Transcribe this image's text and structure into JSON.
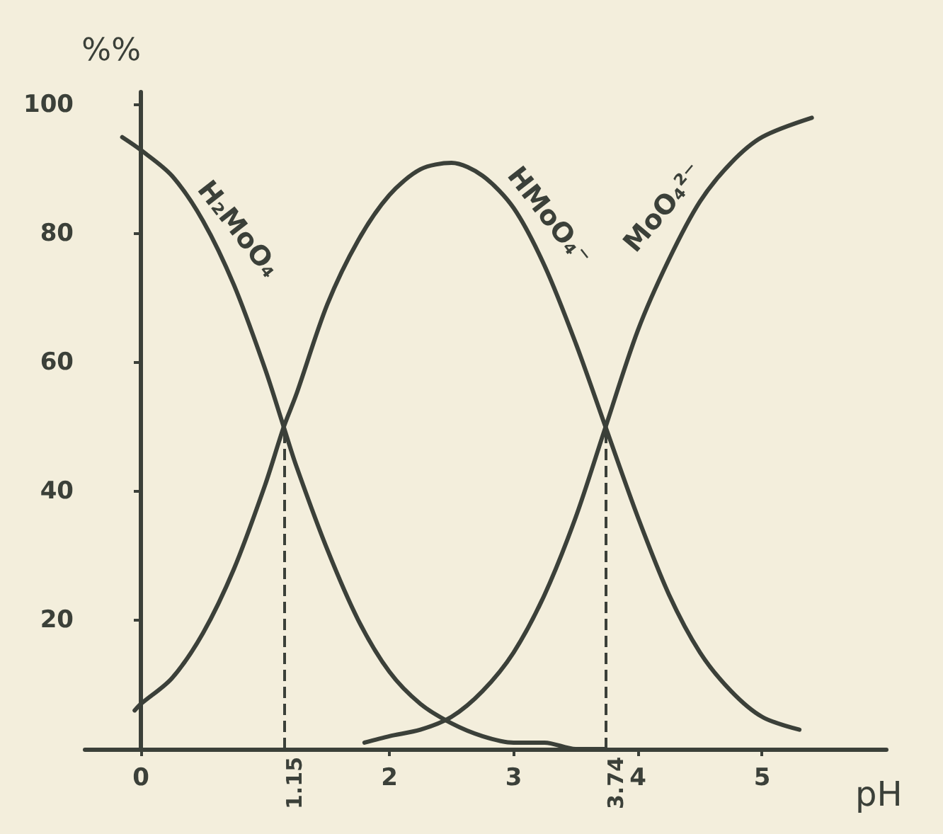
{
  "chart_data": {
    "type": "line",
    "xlabel": "pH",
    "ylabel": "%%",
    "xlim": [
      -0.45,
      6
    ],
    "ylim": [
      0,
      102
    ],
    "xticks": [
      0,
      2,
      3,
      4,
      5
    ],
    "yticks": [
      20,
      40,
      60,
      80,
      100
    ],
    "marker": "none",
    "line_style": "solid",
    "series": [
      {
        "name": "H₂MoO₄",
        "color": "#3b4039",
        "x": [
          -0.15,
          0,
          0.25,
          0.5,
          0.75,
          1,
          1.15,
          1.25,
          1.5,
          1.75,
          2,
          2.25,
          2.5,
          2.75,
          3,
          3.25,
          3.5,
          3.74
        ],
        "values": [
          95,
          93,
          89,
          82,
          72,
          59,
          50,
          44,
          31,
          20,
          12,
          7,
          4,
          2,
          1,
          1,
          0,
          0
        ]
      },
      {
        "name": "HMoO₄⁻",
        "color": "#3b4039",
        "x": [
          -0.05,
          0,
          0.25,
          0.5,
          0.75,
          1,
          1.15,
          1.25,
          1.5,
          1.75,
          2,
          2.25,
          2.5,
          2.75,
          3,
          3.25,
          3.5,
          3.74,
          4,
          4.25,
          4.5,
          4.75,
          5,
          5.3
        ],
        "values": [
          6,
          7,
          11,
          18,
          28,
          41,
          50,
          55,
          69,
          79,
          86,
          90,
          91,
          89,
          84,
          75,
          63,
          50,
          36,
          24,
          15,
          9,
          5,
          3
        ]
      },
      {
        "name": "MoO₄²⁻",
        "color": "#3b4039",
        "x": [
          1.8,
          2,
          2.25,
          2.5,
          2.75,
          3,
          3.25,
          3.5,
          3.74,
          4,
          4.25,
          4.5,
          4.75,
          5,
          5.4
        ],
        "values": [
          1,
          2,
          3,
          5,
          9,
          15,
          24,
          36,
          50,
          65,
          76,
          85,
          91,
          95,
          98
        ]
      }
    ],
    "ref_lines": [
      {
        "axis": "x",
        "value": 1.15,
        "label": "1.15",
        "line_style": "dashed",
        "color": "#3b4039"
      },
      {
        "axis": "x",
        "value": 3.74,
        "label": "3.74",
        "line_style": "dashed",
        "color": "#3b4039"
      }
    ]
  }
}
